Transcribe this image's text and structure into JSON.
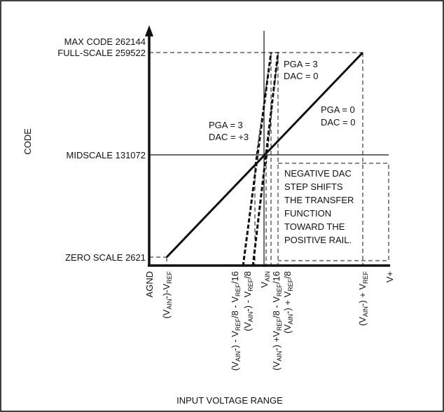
{
  "y_axis": {
    "label": "CODE"
  },
  "x_axis": {
    "label": "INPUT VOLTAGE RANGE"
  },
  "y_levels": {
    "max_code": "MAX CODE 262144",
    "full_scale": "FULL-SCALE 259522",
    "midscale": "MIDSCALE 131072",
    "zero_scale": "ZERO SCALE 2621"
  },
  "x_ticks": {
    "agnd": "AGND",
    "min_ref": {
      "a": "(V",
      "b": "AIN",
      "c": "-)-V",
      "d": "REF",
      "e": ""
    },
    "min_ref8_ref16": {
      "a": "(V",
      "b": "AIN",
      "c": "-) - V",
      "d": "REF",
      "e": "/8 - V",
      "f": "REF",
      "g": "/16"
    },
    "min_ref8": {
      "a": "(V",
      "b": "AIN",
      "c": "-) - V",
      "d": "REF",
      "e": "/8"
    },
    "vain": {
      "a": "V",
      "b": "AIN"
    },
    "plus_ref8_ref16": {
      "a": "(V",
      "b": "AIN",
      "c": "-) +V",
      "d": "REF",
      "e": "/8 - V",
      "f": "REF",
      "g": "/16"
    },
    "plus_ref8": {
      "a": "(V",
      "b": "AIN",
      "c": "-) + V",
      "d": "REF",
      "e": "/8"
    },
    "plus_ref": {
      "a": "(V",
      "b": "AIN",
      "c": "-) + V",
      "d": "REF",
      "e": ""
    },
    "vplus": "V+"
  },
  "annotations": {
    "pga3_dac0": [
      "PGA = 3",
      "DAC = 0"
    ],
    "pga0_dac0": [
      "PGA = 0",
      "DAC = 0"
    ],
    "pga3_dac3": [
      "PGA = 3",
      "DAC = +3"
    ],
    "note": [
      "NEGATIVE DAC",
      "STEP SHIFTS",
      "THE TRANSFER",
      "FUNCTION",
      "TOWARD THE",
      "POSITIVE RAIL."
    ]
  },
  "colors": {
    "line": "#111111",
    "background": "#ffffff",
    "frame": "#000000"
  }
}
